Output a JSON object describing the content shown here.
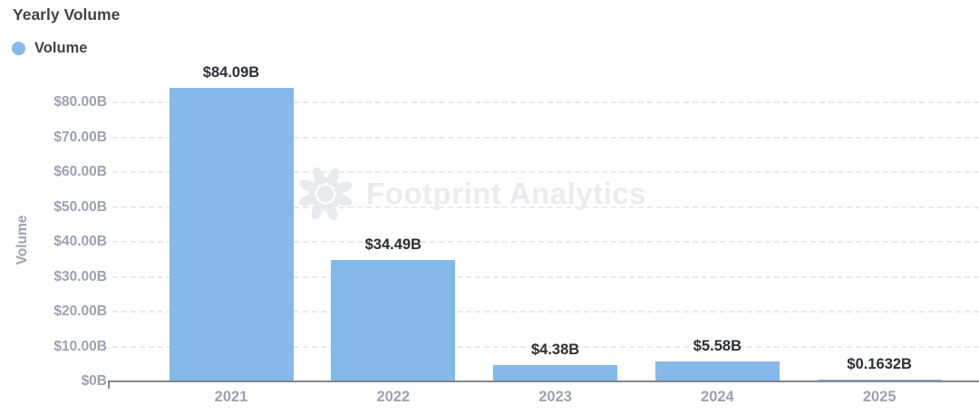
{
  "header": {
    "title": "Yearly Volume"
  },
  "legend": {
    "items": [
      {
        "label": "Volume",
        "color": "#85b9e9"
      }
    ]
  },
  "watermark": {
    "text": "Footprint Analytics"
  },
  "chart_data": {
    "type": "bar",
    "title": "Yearly Volume",
    "series_name": "Volume",
    "categories": [
      "2021",
      "2022",
      "2023",
      "2024",
      "2025"
    ],
    "values": [
      84.09,
      34.49,
      4.38,
      5.58,
      0.1632
    ],
    "value_labels": [
      "$84.09B",
      "$34.49B",
      "$4.38B",
      "$5.58B",
      "$0.1632B"
    ],
    "xlabel": "",
    "ylabel": "Volume",
    "ylim": [
      0,
      80
    ],
    "yticks": [
      {
        "value": 0,
        "label": "$0B"
      },
      {
        "value": 10,
        "label": "$10.00B"
      },
      {
        "value": 20,
        "label": "$20.00B"
      },
      {
        "value": 30,
        "label": "$30.00B"
      },
      {
        "value": 40,
        "label": "$40.00B"
      },
      {
        "value": 50,
        "label": "$50.00B"
      },
      {
        "value": 60,
        "label": "$60.00B"
      },
      {
        "value": 70,
        "label": "$70.00B"
      },
      {
        "value": 80,
        "label": "$80.00B"
      }
    ],
    "grid": "horizontal-dashed",
    "legend_position": "top-left",
    "bar_color": "#85b9e9",
    "value_label_color": "#2b2f38",
    "axis_text_color": "#9aa2b1"
  }
}
